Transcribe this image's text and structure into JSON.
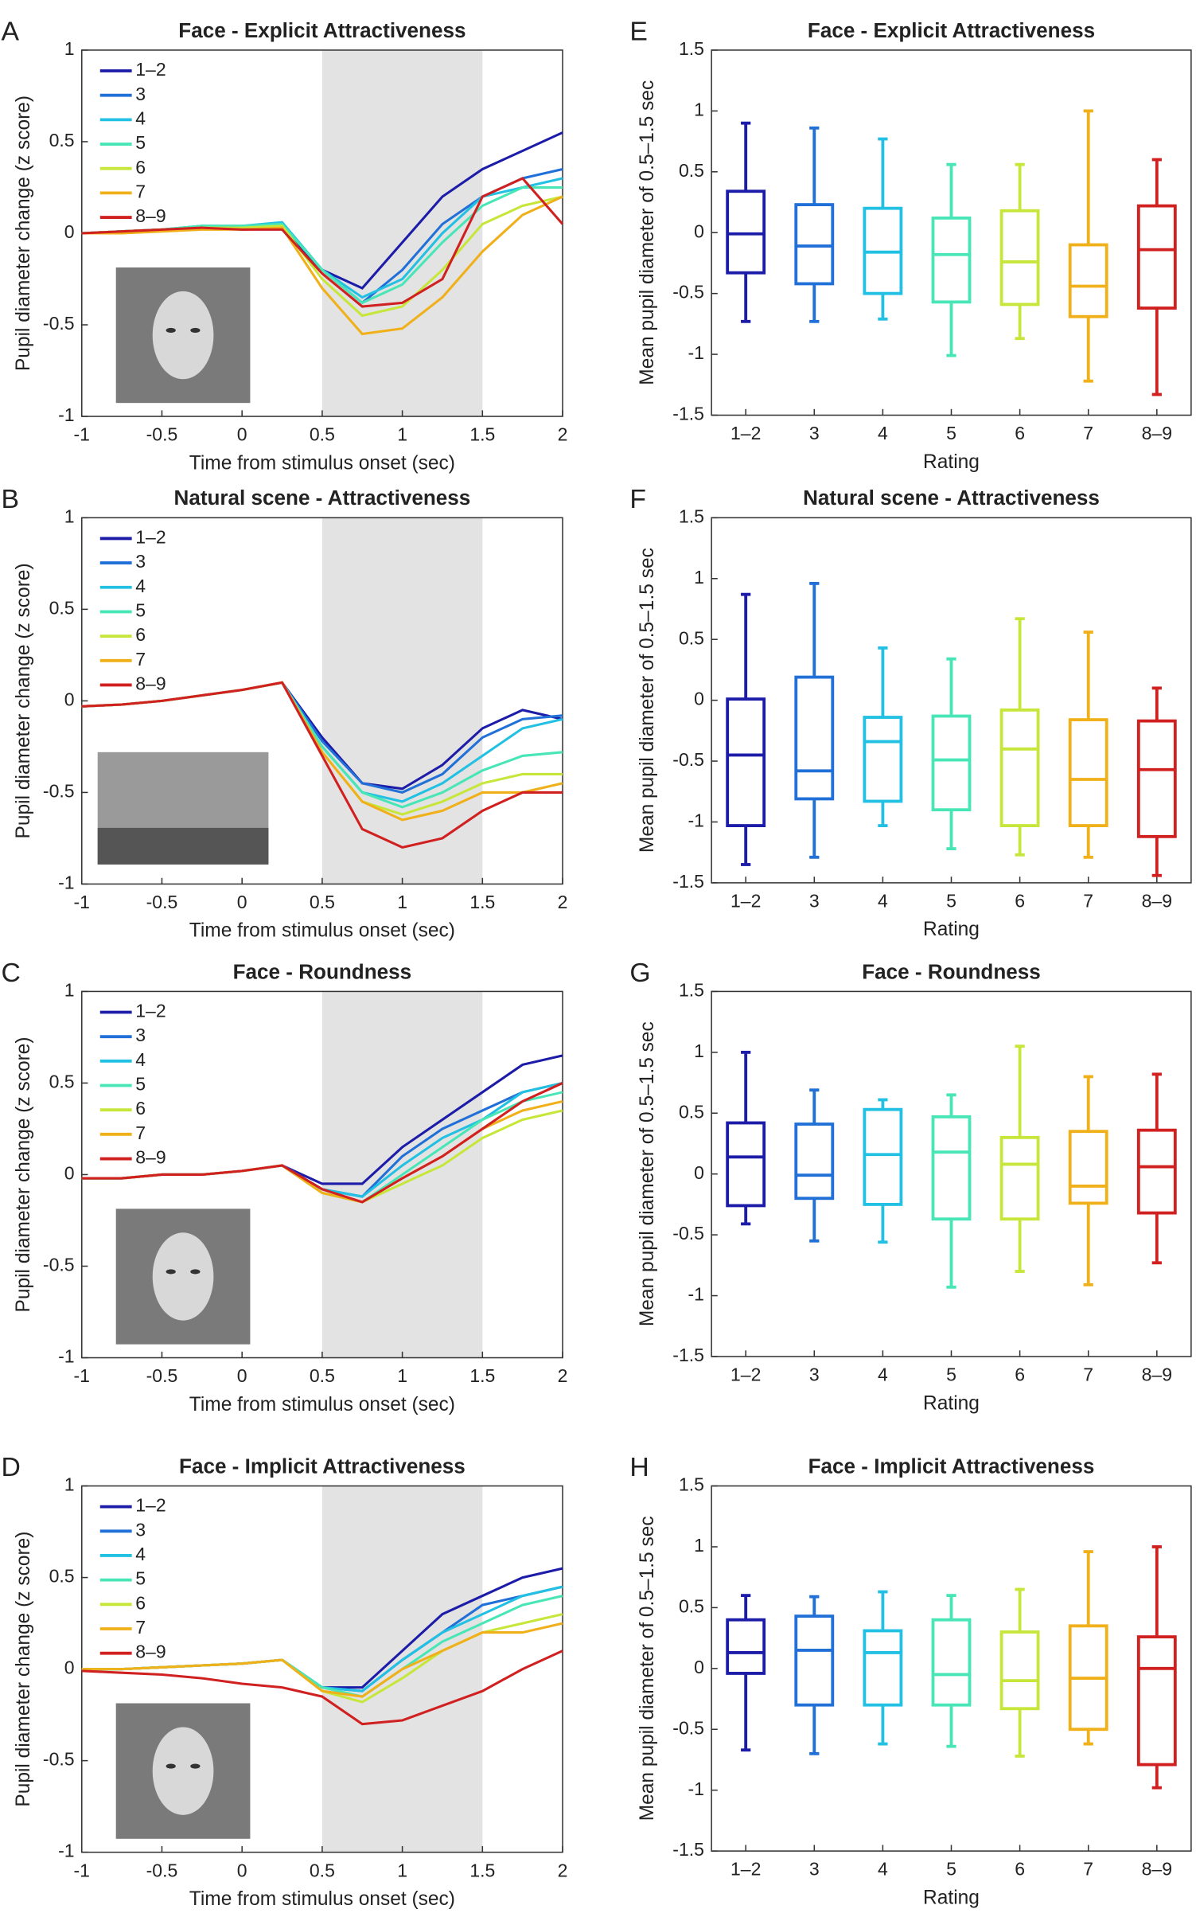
{
  "chart_data": [
    {
      "panel": "A",
      "type": "line",
      "title": "Face - Explicit Attractiveness",
      "xlabel": "Time from stimulus onset (sec)",
      "ylabel": "Pupil diameter change (z score)",
      "x": [
        -1,
        -0.75,
        -0.5,
        -0.25,
        0,
        0.25,
        0.5,
        0.75,
        1,
        1.25,
        1.5,
        1.75,
        2
      ],
      "xlim": [
        -1,
        2
      ],
      "xticks": [
        -1,
        -0.5,
        0,
        0.5,
        1,
        1.5,
        2
      ],
      "ylim": [
        -1,
        1
      ],
      "yticks": [
        -1,
        -0.5,
        0,
        0.5,
        1
      ],
      "shade": [
        0.5,
        1.5
      ],
      "legend": "upper left",
      "series": [
        {
          "name": "1–2",
          "color": "#1c1ca8",
          "values": [
            0,
            0.01,
            0.02,
            0.03,
            0.02,
            0.03,
            -0.2,
            -0.3,
            -0.05,
            0.2,
            0.35,
            0.45,
            0.55
          ]
        },
        {
          "name": "3",
          "color": "#2070d8",
          "values": [
            0,
            0.01,
            0.02,
            0.04,
            0.03,
            0.05,
            -0.2,
            -0.38,
            -0.2,
            0.05,
            0.2,
            0.3,
            0.35
          ]
        },
        {
          "name": "4",
          "color": "#22c0e2",
          "values": [
            0,
            0.01,
            0.02,
            0.04,
            0.04,
            0.06,
            -0.2,
            -0.35,
            -0.25,
            0,
            0.2,
            0.25,
            0.3
          ]
        },
        {
          "name": "5",
          "color": "#48e6b6",
          "values": [
            0,
            0.01,
            0.02,
            0.04,
            0.04,
            0.05,
            -0.2,
            -0.38,
            -0.28,
            -0.05,
            0.15,
            0.25,
            0.25
          ]
        },
        {
          "name": "6",
          "color": "#c6e63a",
          "values": [
            0,
            0.01,
            0.02,
            0.03,
            0.03,
            0.04,
            -0.25,
            -0.45,
            -0.4,
            -0.2,
            0.05,
            0.15,
            0.2
          ]
        },
        {
          "name": "7",
          "color": "#f0b01a",
          "values": [
            0,
            0,
            0.01,
            0.02,
            0.02,
            0.03,
            -0.3,
            -0.55,
            -0.52,
            -0.35,
            -0.1,
            0.1,
            0.2
          ]
        },
        {
          "name": "8–9",
          "color": "#d02020",
          "values": [
            0,
            0.01,
            0.02,
            0.03,
            0.02,
            0.02,
            -0.22,
            -0.4,
            -0.38,
            -0.25,
            0.2,
            0.3,
            0.05
          ]
        }
      ]
    },
    {
      "panel": "B",
      "type": "line",
      "title": "Natural scene - Attractiveness",
      "xlabel": "Time from stimulus onset (sec)",
      "ylabel": "Pupil diameter change (z score)",
      "x": [
        -1,
        -0.75,
        -0.5,
        -0.25,
        0,
        0.25,
        0.5,
        0.75,
        1,
        1.25,
        1.5,
        1.75,
        2
      ],
      "xlim": [
        -1,
        2
      ],
      "xticks": [
        -1,
        -0.5,
        0,
        0.5,
        1,
        1.5,
        2
      ],
      "ylim": [
        -1,
        1
      ],
      "yticks": [
        -1,
        -0.5,
        0,
        0.5,
        1
      ],
      "shade": [
        0.5,
        1.5
      ],
      "legend": "upper left",
      "series": [
        {
          "name": "1–2",
          "color": "#1c1ca8",
          "values": [
            -0.03,
            -0.02,
            0,
            0.03,
            0.06,
            0.1,
            -0.2,
            -0.45,
            -0.48,
            -0.35,
            -0.15,
            -0.05,
            -0.1
          ]
        },
        {
          "name": "3",
          "color": "#2070d8",
          "values": [
            -0.03,
            -0.02,
            0,
            0.03,
            0.06,
            0.1,
            -0.22,
            -0.45,
            -0.5,
            -0.4,
            -0.2,
            -0.1,
            -0.08
          ]
        },
        {
          "name": "4",
          "color": "#22c0e2",
          "values": [
            -0.03,
            -0.02,
            0,
            0.03,
            0.06,
            0.1,
            -0.25,
            -0.5,
            -0.55,
            -0.45,
            -0.3,
            -0.15,
            -0.1
          ]
        },
        {
          "name": "5",
          "color": "#48e6b6",
          "values": [
            -0.03,
            -0.02,
            0,
            0.03,
            0.06,
            0.1,
            -0.25,
            -0.5,
            -0.58,
            -0.5,
            -0.38,
            -0.3,
            -0.28
          ]
        },
        {
          "name": "6",
          "color": "#c6e63a",
          "values": [
            -0.03,
            -0.02,
            0,
            0.03,
            0.06,
            0.1,
            -0.28,
            -0.55,
            -0.62,
            -0.55,
            -0.45,
            -0.4,
            -0.4
          ]
        },
        {
          "name": "7",
          "color": "#f0b01a",
          "values": [
            -0.03,
            -0.02,
            0,
            0.03,
            0.06,
            0.1,
            -0.28,
            -0.55,
            -0.65,
            -0.6,
            -0.5,
            -0.5,
            -0.45
          ]
        },
        {
          "name": "8–9",
          "color": "#d02020",
          "values": [
            -0.03,
            -0.02,
            0,
            0.03,
            0.06,
            0.1,
            -0.3,
            -0.7,
            -0.8,
            -0.75,
            -0.6,
            -0.5,
            -0.5
          ]
        }
      ]
    },
    {
      "panel": "C",
      "type": "line",
      "title": "Face - Roundness",
      "xlabel": "Time from stimulus onset (sec)",
      "ylabel": "Pupil diameter change (z score)",
      "x": [
        -1,
        -0.75,
        -0.5,
        -0.25,
        0,
        0.25,
        0.5,
        0.75,
        1,
        1.25,
        1.5,
        1.75,
        2
      ],
      "xlim": [
        -1,
        2
      ],
      "xticks": [
        -1,
        -0.5,
        0,
        0.5,
        1,
        1.5,
        2
      ],
      "ylim": [
        -1,
        1
      ],
      "yticks": [
        -1,
        -0.5,
        0,
        0.5,
        1
      ],
      "shade": [
        0.5,
        1.5
      ],
      "legend": "upper left",
      "series": [
        {
          "name": "1–2",
          "color": "#1c1ca8",
          "values": [
            -0.02,
            -0.02,
            0,
            0,
            0.02,
            0.05,
            -0.05,
            -0.05,
            0.15,
            0.3,
            0.45,
            0.6,
            0.65
          ]
        },
        {
          "name": "3",
          "color": "#2070d8",
          "values": [
            -0.02,
            -0.02,
            0,
            0,
            0.02,
            0.05,
            -0.08,
            -0.12,
            0.1,
            0.25,
            0.35,
            0.45,
            0.5
          ]
        },
        {
          "name": "4",
          "color": "#22c0e2",
          "values": [
            -0.02,
            -0.02,
            0,
            0,
            0.02,
            0.05,
            -0.08,
            -0.12,
            0.05,
            0.2,
            0.3,
            0.45,
            0.5
          ]
        },
        {
          "name": "5",
          "color": "#48e6b6",
          "values": [
            -0.02,
            -0.02,
            0,
            0,
            0.02,
            0.05,
            -0.1,
            -0.15,
            0,
            0.15,
            0.3,
            0.4,
            0.45
          ]
        },
        {
          "name": "6",
          "color": "#c6e63a",
          "values": [
            -0.02,
            -0.02,
            0,
            0,
            0.02,
            0.05,
            -0.1,
            -0.15,
            -0.05,
            0.05,
            0.2,
            0.3,
            0.35
          ]
        },
        {
          "name": "7",
          "color": "#f0b01a",
          "values": [
            -0.02,
            -0.02,
            0,
            0,
            0.02,
            0.05,
            -0.1,
            -0.15,
            -0.02,
            0.1,
            0.25,
            0.35,
            0.4
          ]
        },
        {
          "name": "8–9",
          "color": "#d02020",
          "values": [
            -0.02,
            -0.02,
            0,
            0,
            0.02,
            0.05,
            -0.08,
            -0.15,
            -0.02,
            0.1,
            0.25,
            0.4,
            0.5
          ]
        }
      ]
    },
    {
      "panel": "D",
      "type": "line",
      "title": "Face - Implicit Attractiveness",
      "xlabel": "Time from stimulus onset (sec)",
      "ylabel": "Pupil diameter change (z score)",
      "x": [
        -1,
        -0.75,
        -0.5,
        -0.25,
        0,
        0.25,
        0.5,
        0.75,
        1,
        1.25,
        1.5,
        1.75,
        2
      ],
      "xlim": [
        -1,
        2
      ],
      "xticks": [
        -1,
        -0.5,
        0,
        0.5,
        1,
        1.5,
        2
      ],
      "ylim": [
        -1,
        1
      ],
      "yticks": [
        -1,
        -0.5,
        0,
        0.5,
        1
      ],
      "shade": [
        0.5,
        1.5
      ],
      "legend": "upper left",
      "series": [
        {
          "name": "1–2",
          "color": "#1c1ca8",
          "values": [
            0,
            0,
            0.01,
            0.02,
            0.03,
            0.05,
            -0.1,
            -0.1,
            0.1,
            0.3,
            0.4,
            0.5,
            0.55
          ]
        },
        {
          "name": "3",
          "color": "#2070d8",
          "values": [
            0,
            0,
            0.01,
            0.02,
            0.03,
            0.05,
            -0.1,
            -0.12,
            0.05,
            0.2,
            0.35,
            0.4,
            0.45
          ]
        },
        {
          "name": "4",
          "color": "#22c0e2",
          "values": [
            0,
            0,
            0.01,
            0.02,
            0.03,
            0.05,
            -0.1,
            -0.12,
            0.05,
            0.2,
            0.3,
            0.4,
            0.45
          ]
        },
        {
          "name": "5",
          "color": "#48e6b6",
          "values": [
            0,
            0,
            0.01,
            0.02,
            0.03,
            0.05,
            -0.1,
            -0.15,
            0,
            0.15,
            0.25,
            0.35,
            0.4
          ]
        },
        {
          "name": "6",
          "color": "#c6e63a",
          "values": [
            0,
            0,
            0.01,
            0.02,
            0.03,
            0.05,
            -0.12,
            -0.18,
            -0.05,
            0.1,
            0.2,
            0.25,
            0.3
          ]
        },
        {
          "name": "7",
          "color": "#f0b01a",
          "values": [
            0,
            0,
            0.01,
            0.02,
            0.03,
            0.05,
            -0.12,
            -0.15,
            0,
            0.1,
            0.2,
            0.2,
            0.25
          ]
        },
        {
          "name": "8–9",
          "color": "#d02020",
          "values": [
            -0.01,
            -0.02,
            -0.03,
            -0.05,
            -0.08,
            -0.1,
            -0.15,
            -0.3,
            -0.28,
            -0.2,
            -0.12,
            0,
            0.1
          ]
        }
      ]
    },
    {
      "panel": "E",
      "type": "box",
      "title": "Face - Explicit Attractiveness",
      "xlabel": "Rating",
      "ylabel": "Mean pupil diameter of 0.5–1.5 sec",
      "categories": [
        "1–2",
        "3",
        "4",
        "5",
        "6",
        "7",
        "8–9"
      ],
      "colors": [
        "#1c1ca8",
        "#2070d8",
        "#22c0e2",
        "#48e6b6",
        "#c6e63a",
        "#f0b01a",
        "#d02020"
      ],
      "ylim": [
        -1.5,
        1.5
      ],
      "yticks": [
        -1.5,
        -1,
        -0.5,
        0,
        0.5,
        1,
        1.5
      ],
      "boxes": [
        {
          "min": -0.73,
          "q1": -0.33,
          "median": -0.01,
          "q3": 0.34,
          "max": 0.9
        },
        {
          "min": -0.73,
          "q1": -0.42,
          "median": -0.11,
          "q3": 0.23,
          "max": 0.86
        },
        {
          "min": -0.71,
          "q1": -0.5,
          "median": -0.16,
          "q3": 0.2,
          "max": 0.77
        },
        {
          "min": -1.01,
          "q1": -0.57,
          "median": -0.18,
          "q3": 0.12,
          "max": 0.56
        },
        {
          "min": -0.87,
          "q1": -0.59,
          "median": -0.24,
          "q3": 0.18,
          "max": 0.56
        },
        {
          "min": -1.22,
          "q1": -0.69,
          "median": -0.44,
          "q3": -0.1,
          "max": 1.0
        },
        {
          "min": -1.33,
          "q1": -0.62,
          "median": -0.14,
          "q3": 0.22,
          "max": 0.6
        }
      ]
    },
    {
      "panel": "F",
      "type": "box",
      "title": "Natural scene - Attractiveness",
      "xlabel": "Rating",
      "ylabel": "Mean pupil diameter of 0.5–1.5 sec",
      "categories": [
        "1–2",
        "3",
        "4",
        "5",
        "6",
        "7",
        "8–9"
      ],
      "colors": [
        "#1c1ca8",
        "#2070d8",
        "#22c0e2",
        "#48e6b6",
        "#c6e63a",
        "#f0b01a",
        "#d02020"
      ],
      "ylim": [
        -1.5,
        1.5
      ],
      "yticks": [
        -1.5,
        -1,
        -0.5,
        0,
        0.5,
        1,
        1.5
      ],
      "boxes": [
        {
          "min": -1.35,
          "q1": -1.03,
          "median": -0.45,
          "q3": 0.01,
          "max": 0.87
        },
        {
          "min": -1.29,
          "q1": -0.81,
          "median": -0.58,
          "q3": 0.19,
          "max": 0.96
        },
        {
          "min": -1.03,
          "q1": -0.83,
          "median": -0.34,
          "q3": -0.14,
          "max": 0.43
        },
        {
          "min": -1.22,
          "q1": -0.9,
          "median": -0.49,
          "q3": -0.13,
          "max": 0.34
        },
        {
          "min": -1.27,
          "q1": -1.03,
          "median": -0.4,
          "q3": -0.08,
          "max": 0.67
        },
        {
          "min": -1.29,
          "q1": -1.03,
          "median": -0.65,
          "q3": -0.16,
          "max": 0.56
        },
        {
          "min": -1.44,
          "q1": -1.12,
          "median": -0.57,
          "q3": -0.17,
          "max": 0.1
        }
      ]
    },
    {
      "panel": "G",
      "type": "box",
      "title": "Face - Roundness",
      "xlabel": "Rating",
      "ylabel": "Mean pupil diameter of 0.5–1.5 sec",
      "categories": [
        "1–2",
        "3",
        "4",
        "5",
        "6",
        "7",
        "8–9"
      ],
      "colors": [
        "#1c1ca8",
        "#2070d8",
        "#22c0e2",
        "#48e6b6",
        "#c6e63a",
        "#f0b01a",
        "#d02020"
      ],
      "ylim": [
        -1.5,
        1.5
      ],
      "yticks": [
        -1.5,
        -1,
        -0.5,
        0,
        0.5,
        1,
        1.5
      ],
      "boxes": [
        {
          "min": -0.41,
          "q1": -0.26,
          "median": 0.14,
          "q3": 0.42,
          "max": 1.0
        },
        {
          "min": -0.55,
          "q1": -0.2,
          "median": -0.01,
          "q3": 0.41,
          "max": 0.69
        },
        {
          "min": -0.56,
          "q1": -0.25,
          "median": 0.16,
          "q3": 0.53,
          "max": 0.61
        },
        {
          "min": -0.93,
          "q1": -0.37,
          "median": 0.18,
          "q3": 0.47,
          "max": 0.65
        },
        {
          "min": -0.8,
          "q1": -0.37,
          "median": 0.08,
          "q3": 0.3,
          "max": 1.05
        },
        {
          "min": -0.91,
          "q1": -0.24,
          "median": -0.1,
          "q3": 0.35,
          "max": 0.8
        },
        {
          "min": -0.73,
          "q1": -0.32,
          "median": 0.06,
          "q3": 0.36,
          "max": 0.82
        }
      ]
    },
    {
      "panel": "H",
      "type": "box",
      "title": "Face - Implicit Attractiveness",
      "xlabel": "Rating",
      "ylabel": "Mean pupil diameter of 0.5–1.5 sec",
      "categories": [
        "1–2",
        "3",
        "4",
        "5",
        "6",
        "7",
        "8–9"
      ],
      "colors": [
        "#1c1ca8",
        "#2070d8",
        "#22c0e2",
        "#48e6b6",
        "#c6e63a",
        "#f0b01a",
        "#d02020"
      ],
      "ylim": [
        -1.5,
        1.5
      ],
      "yticks": [
        -1.5,
        -1,
        -0.5,
        0,
        0.5,
        1,
        1.5
      ],
      "boxes": [
        {
          "min": -0.67,
          "q1": -0.04,
          "median": 0.13,
          "q3": 0.4,
          "max": 0.6
        },
        {
          "min": -0.7,
          "q1": -0.3,
          "median": 0.15,
          "q3": 0.43,
          "max": 0.59
        },
        {
          "min": -0.62,
          "q1": -0.3,
          "median": 0.13,
          "q3": 0.31,
          "max": 0.63
        },
        {
          "min": -0.64,
          "q1": -0.3,
          "median": -0.05,
          "q3": 0.4,
          "max": 0.6
        },
        {
          "min": -0.72,
          "q1": -0.33,
          "median": -0.1,
          "q3": 0.3,
          "max": 0.65
        },
        {
          "min": -0.62,
          "q1": -0.5,
          "median": -0.08,
          "q3": 0.35,
          "max": 0.96
        },
        {
          "min": -0.98,
          "q1": -0.79,
          "median": 0.0,
          "q3": 0.26,
          "max": 1.0
        }
      ]
    }
  ]
}
